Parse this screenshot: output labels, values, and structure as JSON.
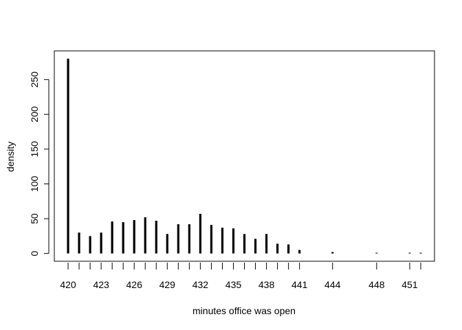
{
  "chart_data": {
    "type": "bar",
    "title": "",
    "xlabel": "minutes office was open",
    "ylabel": "density",
    "x": [
      420,
      421,
      422,
      423,
      424,
      425,
      426,
      427,
      428,
      429,
      430,
      431,
      432,
      433,
      434,
      435,
      436,
      437,
      438,
      439,
      440,
      441,
      444,
      448,
      451,
      452
    ],
    "values": [
      280,
      30,
      25,
      30,
      46,
      45,
      48,
      52,
      47,
      28,
      42,
      42,
      57,
      41,
      37,
      36,
      28,
      21,
      28,
      14,
      13,
      5,
      2,
      1,
      1,
      1
    ],
    "x_ticks": [
      420,
      423,
      426,
      429,
      432,
      435,
      438,
      441,
      444,
      448,
      451
    ],
    "x_tick_labels": [
      "420",
      "423",
      "426",
      "429",
      "432",
      "435",
      "438",
      "441",
      "444",
      "448",
      "451"
    ],
    "y_ticks": [
      0,
      50,
      100,
      150,
      200,
      250
    ],
    "y_tick_labels": [
      "0",
      "50",
      "100",
      "150",
      "200",
      "250"
    ],
    "xlim": [
      419,
      453
    ],
    "ylim": [
      -11.2,
      291.2
    ],
    "grid": false,
    "legend": "none"
  }
}
